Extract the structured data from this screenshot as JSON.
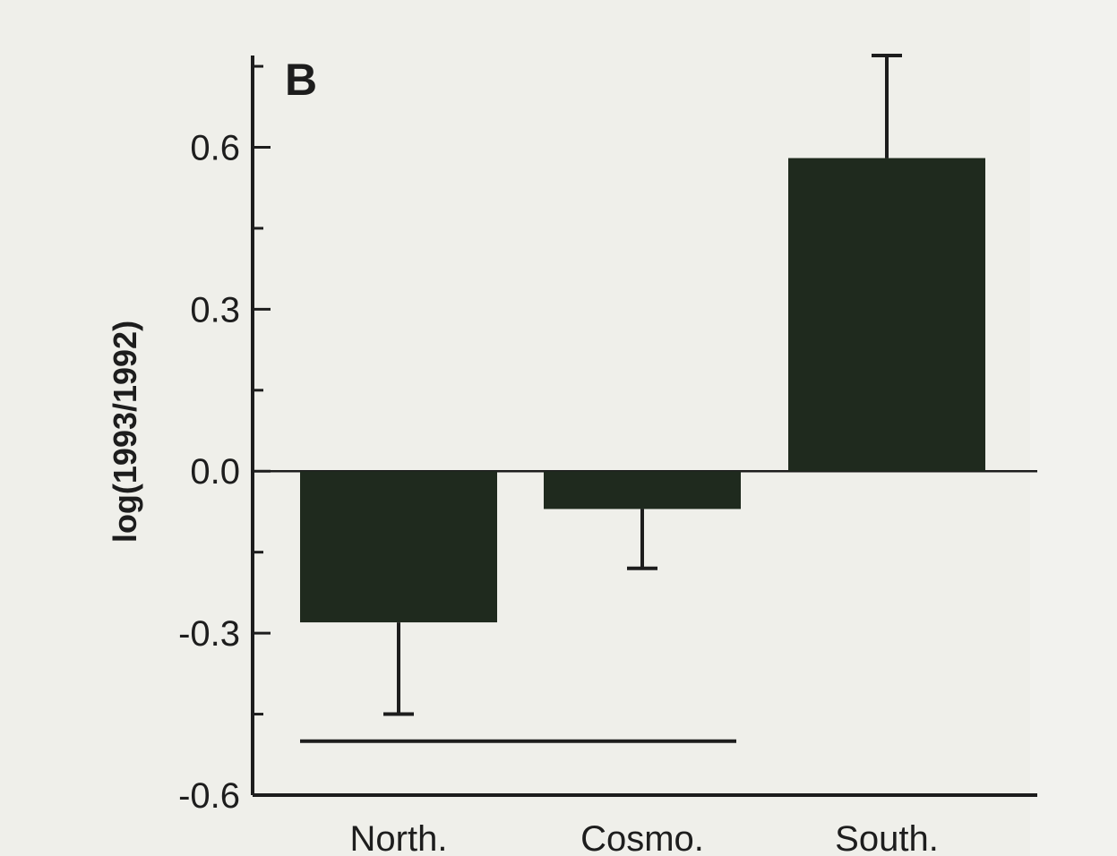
{
  "chart_data": {
    "type": "bar",
    "panel_label": "B",
    "ylabel": "log(1993/1992)",
    "xlabel": "",
    "categories": [
      "North.",
      "Cosmo.",
      "South."
    ],
    "values": [
      -0.28,
      -0.07,
      0.58
    ],
    "error_upper": [
      null,
      null,
      0.77
    ],
    "error_lower": [
      -0.45,
      -0.18,
      null
    ],
    "ylim": [
      -0.6,
      0.77
    ],
    "yticks": [
      -0.6,
      -0.3,
      0.0,
      0.3,
      0.6
    ],
    "ytick_labels": [
      "-0.6",
      "-0.3",
      "0.0",
      "0.3",
      "0.6"
    ],
    "significance_bar": {
      "from": "North.",
      "to": "Cosmo.",
      "y": -0.5
    },
    "grid": false,
    "colors": {
      "bar": "#1f2a1e",
      "axis": "#1d1d1d",
      "background": "#efefea"
    }
  }
}
